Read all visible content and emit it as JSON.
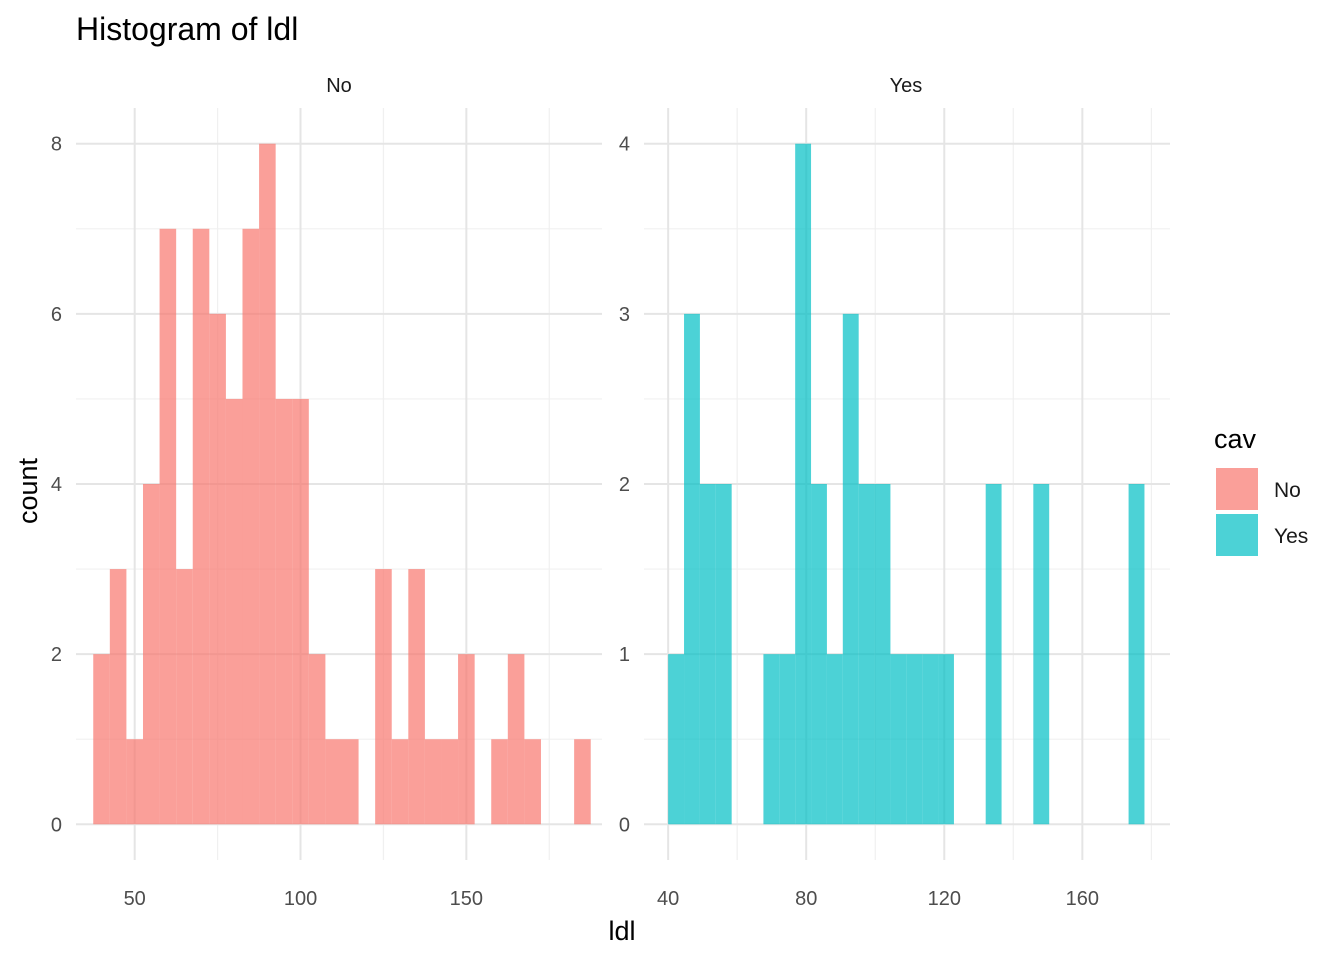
{
  "chart_data": {
    "type": "bar",
    "title": "Histogram of ldl",
    "xlabel": "ldl",
    "ylabel": "count",
    "legend": {
      "title": "cav",
      "position": "right",
      "entries": [
        {
          "label": "No",
          "color": "#F8766D"
        },
        {
          "label": "Yes",
          "color": "#00BFC4"
        }
      ]
    },
    "grid": true,
    "bar_opacity": 0.7,
    "panels": [
      {
        "strip_label": "No",
        "color": "#F8766D",
        "xlim": [
          32.3,
          190.9
        ],
        "ylim": [
          -0.42,
          8.42
        ],
        "x_ticks": [
          50,
          100,
          150
        ],
        "x_tick_labels": [
          "50",
          "100",
          "150"
        ],
        "y_ticks": [
          0,
          2,
          4,
          6,
          8
        ],
        "y_tick_labels": [
          "0",
          "2",
          "4",
          "6",
          "8"
        ],
        "bins": [
          {
            "x0": 37.5,
            "x1": 42.5,
            "count": 2
          },
          {
            "x0": 42.5,
            "x1": 47.5,
            "count": 3
          },
          {
            "x0": 47.5,
            "x1": 52.5,
            "count": 1
          },
          {
            "x0": 52.5,
            "x1": 57.5,
            "count": 4
          },
          {
            "x0": 57.5,
            "x1": 62.5,
            "count": 7
          },
          {
            "x0": 62.5,
            "x1": 67.5,
            "count": 3
          },
          {
            "x0": 67.5,
            "x1": 72.5,
            "count": 7
          },
          {
            "x0": 72.5,
            "x1": 77.5,
            "count": 6
          },
          {
            "x0": 77.5,
            "x1": 82.5,
            "count": 5
          },
          {
            "x0": 82.5,
            "x1": 87.5,
            "count": 7
          },
          {
            "x0": 87.5,
            "x1": 92.5,
            "count": 8
          },
          {
            "x0": 92.5,
            "x1": 97.5,
            "count": 5
          },
          {
            "x0": 97.5,
            "x1": 102.5,
            "count": 5
          },
          {
            "x0": 102.5,
            "x1": 107.5,
            "count": 2
          },
          {
            "x0": 107.5,
            "x1": 112.5,
            "count": 1
          },
          {
            "x0": 112.5,
            "x1": 117.5,
            "count": 1
          },
          {
            "x0": 122.5,
            "x1": 127.5,
            "count": 3
          },
          {
            "x0": 127.5,
            "x1": 132.5,
            "count": 1
          },
          {
            "x0": 132.5,
            "x1": 137.5,
            "count": 3
          },
          {
            "x0": 137.5,
            "x1": 142.5,
            "count": 1
          },
          {
            "x0": 142.5,
            "x1": 147.5,
            "count": 1
          },
          {
            "x0": 147.5,
            "x1": 152.5,
            "count": 2
          },
          {
            "x0": 157.5,
            "x1": 162.5,
            "count": 1
          },
          {
            "x0": 162.5,
            "x1": 167.5,
            "count": 2
          },
          {
            "x0": 167.5,
            "x1": 172.5,
            "count": 1
          },
          {
            "x0": 182.5,
            "x1": 187.5,
            "count": 1
          }
        ]
      },
      {
        "strip_label": "Yes",
        "color": "#00BFC4",
        "xlim": [
          33.0,
          185.4
        ],
        "ylim": [
          -0.21,
          4.21
        ],
        "x_ticks": [
          40,
          80,
          120,
          160
        ],
        "x_tick_labels": [
          "40",
          "80",
          "120",
          "160"
        ],
        "y_ticks": [
          0,
          1,
          2,
          3,
          4
        ],
        "y_tick_labels": [
          "0",
          "1",
          "2",
          "3",
          "4"
        ],
        "bins": [
          {
            "x0": 40.0,
            "x1": 44.6,
            "count": 1
          },
          {
            "x0": 44.6,
            "x1": 49.2,
            "count": 3
          },
          {
            "x0": 49.2,
            "x1": 53.8,
            "count": 2
          },
          {
            "x0": 53.8,
            "x1": 58.4,
            "count": 2
          },
          {
            "x0": 67.6,
            "x1": 72.2,
            "count": 1
          },
          {
            "x0": 72.2,
            "x1": 76.8,
            "count": 1
          },
          {
            "x0": 76.8,
            "x1": 81.4,
            "count": 4
          },
          {
            "x0": 81.4,
            "x1": 86.0,
            "count": 2
          },
          {
            "x0": 86.0,
            "x1": 90.6,
            "count": 1
          },
          {
            "x0": 90.6,
            "x1": 95.2,
            "count": 3
          },
          {
            "x0": 95.2,
            "x1": 99.8,
            "count": 2
          },
          {
            "x0": 99.8,
            "x1": 104.4,
            "count": 2
          },
          {
            "x0": 104.4,
            "x1": 109.0,
            "count": 1
          },
          {
            "x0": 109.0,
            "x1": 113.6,
            "count": 1
          },
          {
            "x0": 113.6,
            "x1": 118.2,
            "count": 1
          },
          {
            "x0": 118.2,
            "x1": 122.8,
            "count": 1
          },
          {
            "x0": 132.0,
            "x1": 136.6,
            "count": 2
          },
          {
            "x0": 145.8,
            "x1": 150.4,
            "count": 2
          },
          {
            "x0": 173.4,
            "x1": 178.0,
            "count": 2
          }
        ]
      }
    ]
  }
}
